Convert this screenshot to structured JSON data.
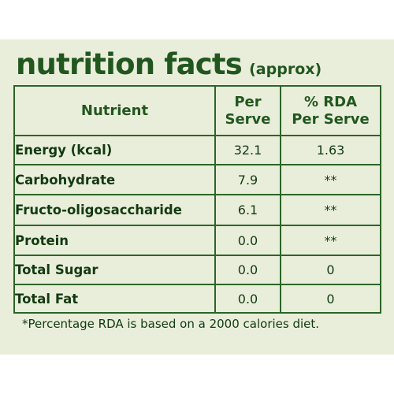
{
  "title": "nutrition facts",
  "subtitle": "(approx)",
  "table": {
    "headers": {
      "nutrient": "Nutrient",
      "per_serve_1": "Per",
      "per_serve_2": "Serve",
      "rda_1": "% RDA",
      "rda_2": "Per Serve"
    },
    "rows": [
      {
        "name": "Energy (kcal)",
        "per_serve": "32.1",
        "rda": "1.63"
      },
      {
        "name": "Carbohydrate",
        "per_serve": "7.9",
        "rda": "**"
      },
      {
        "name": "Fructo-oligosaccharide",
        "per_serve": "6.1",
        "rda": "**"
      },
      {
        "name": "Protein",
        "per_serve": "0.0",
        "rda": "**"
      },
      {
        "name": "Total Sugar",
        "per_serve": "0.0",
        "rda": "0"
      },
      {
        "name": "Total Fat",
        "per_serve": "0.0",
        "rda": "0"
      }
    ]
  },
  "footnote": "*Percentage RDA is based on a 2000 calories diet."
}
